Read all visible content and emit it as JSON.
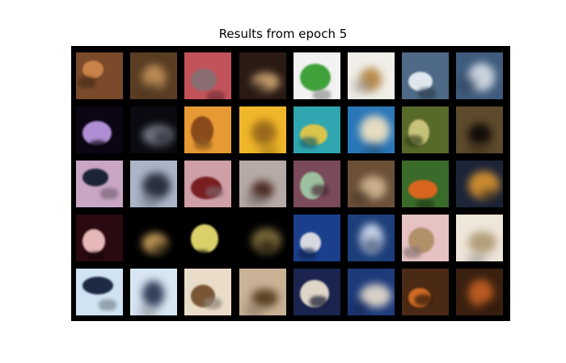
{
  "figure": {
    "title": "Results from epoch 5"
  },
  "grid": {
    "rows": 5,
    "cols": 8,
    "background": "#000000",
    "tiles": [
      {
        "kind": "original",
        "base": "#7a4a2a",
        "accent": "#c9824a",
        "subject": "brown frog on ground"
      },
      {
        "kind": "reconstruction",
        "base": "#5a3d22",
        "accent": "#b88a55",
        "subject": "blurry brown frog"
      },
      {
        "kind": "original",
        "base": "#c2535a",
        "accent": "#8b6d74",
        "subject": "frog on red background"
      },
      {
        "kind": "reconstruction",
        "base": "#2a1a14",
        "accent": "#c7a070",
        "subject": "blurry frog"
      },
      {
        "kind": "original",
        "base": "#f2f2f2",
        "accent": "#3fa23a",
        "subject": "green frog on white"
      },
      {
        "kind": "reconstruction",
        "base": "#f0eee8",
        "accent": "#b88a4a",
        "subject": "blurry frog on white"
      },
      {
        "kind": "original",
        "base": "#4f6a86",
        "accent": "#dfe6ee",
        "subject": "ship on water"
      },
      {
        "kind": "reconstruction",
        "base": "#3f5c7e",
        "accent": "#c9d3dc",
        "subject": "blurry ship"
      },
      {
        "kind": "original",
        "base": "#0c0614",
        "accent": "#b08ed6",
        "subject": "spotted frog on black"
      },
      {
        "kind": "reconstruction",
        "base": "#0a0a10",
        "accent": "#7a7f8f",
        "subject": "blurry spotted frog"
      },
      {
        "kind": "original",
        "base": "#e79a33",
        "accent": "#8a4a1a",
        "subject": "small frog on orange"
      },
      {
        "kind": "reconstruction",
        "base": "#f1b72a",
        "accent": "#9a6a1a",
        "subject": "blurry frog on yellow"
      },
      {
        "kind": "original",
        "base": "#2fa6b0",
        "accent": "#d8c44a",
        "subject": "toy truck on blue"
      },
      {
        "kind": "reconstruction",
        "base": "#2a77b8",
        "accent": "#e6dcc0",
        "subject": "blurry truck"
      },
      {
        "kind": "original",
        "base": "#586a2a",
        "accent": "#c6c27a",
        "subject": "frog face closeup"
      },
      {
        "kind": "reconstruction",
        "base": "#5e4a2c",
        "accent": "#120c08",
        "subject": "blurry frog face"
      },
      {
        "kind": "original",
        "base": "#c9a6c4",
        "accent": "#1c2438",
        "subject": "people silhouettes sunset"
      },
      {
        "kind": "reconstruction",
        "base": "#aab6c8",
        "accent": "#2a2f3e",
        "subject": "blurry silhouettes"
      },
      {
        "kind": "original",
        "base": "#cf9fa6",
        "accent": "#7a1e22",
        "subject": "red horse"
      },
      {
        "kind": "reconstruction",
        "base": "#b6aaa6",
        "accent": "#4a2a20",
        "subject": "blurry horse"
      },
      {
        "kind": "original",
        "base": "#7a4a5a",
        "accent": "#9cc0a0",
        "subject": "frog in pink"
      },
      {
        "kind": "reconstruction",
        "base": "#6b5038",
        "accent": "#c9b08a",
        "subject": "blurry frog"
      },
      {
        "kind": "original",
        "base": "#3a6b2a",
        "accent": "#d9661e",
        "subject": "orange frog in leaves"
      },
      {
        "kind": "reconstruction",
        "base": "#1c2438",
        "accent": "#c98a30",
        "subject": "blurry orange frog"
      },
      {
        "kind": "original",
        "base": "#2a0a10",
        "accent": "#e6b8b8",
        "subject": "dark red creature"
      },
      {
        "kind": "reconstruction",
        "base": "#000000",
        "accent": "#caa05a",
        "subject": "blurry glow"
      },
      {
        "kind": "original",
        "base": "#000000",
        "accent": "#d9d06a",
        "subject": "bird on black"
      },
      {
        "kind": "reconstruction",
        "base": "#000000",
        "accent": "#7a6a3a",
        "subject": "blurry bird"
      },
      {
        "kind": "original",
        "base": "#1a3f8c",
        "accent": "#d8d8e2",
        "subject": "airplane over sea"
      },
      {
        "kind": "reconstruction",
        "base": "#1c3e7a",
        "accent": "#c7d4e8",
        "subject": "blurry airplane"
      },
      {
        "kind": "original",
        "base": "#e6c2c2",
        "accent": "#b2906a",
        "subject": "frog on pink"
      },
      {
        "kind": "reconstruction",
        "base": "#efe6da",
        "accent": "#b39f7a",
        "subject": "blurry frog on pale"
      },
      {
        "kind": "original",
        "base": "#cfe3f2",
        "accent": "#1e2a44",
        "subject": "dark car on white"
      },
      {
        "kind": "reconstruction",
        "base": "#d8e5f2",
        "accent": "#31405a",
        "subject": "blurry car"
      },
      {
        "kind": "original",
        "base": "#e9dcc8",
        "accent": "#7a5634",
        "subject": "frog on sand"
      },
      {
        "kind": "reconstruction",
        "base": "#c9b296",
        "accent": "#5a4224",
        "subject": "blurry frog on sand"
      },
      {
        "kind": "original",
        "base": "#1a244e",
        "accent": "#e0d6c8",
        "subject": "ship hull"
      },
      {
        "kind": "reconstruction",
        "base": "#1e3a7a",
        "accent": "#d8d0c6",
        "subject": "blurry ship"
      },
      {
        "kind": "original",
        "base": "#4a2a14",
        "accent": "#d06a22",
        "subject": "orange toad"
      },
      {
        "kind": "reconstruction",
        "base": "#3a2010",
        "accent": "#b85a20",
        "subject": "blurry toad"
      }
    ]
  }
}
